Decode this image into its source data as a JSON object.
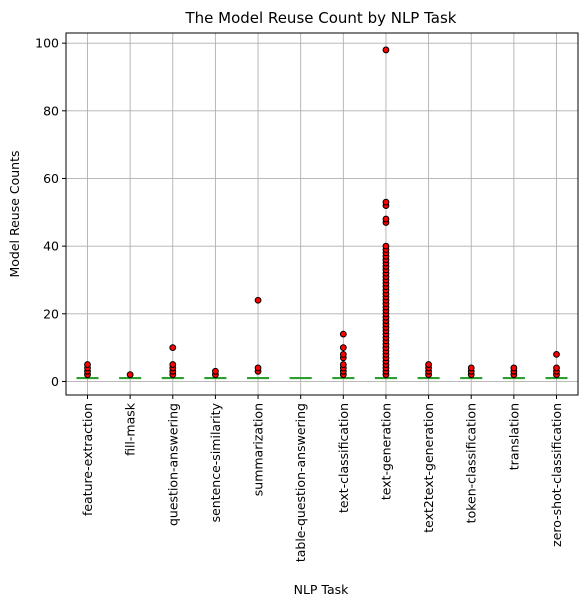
{
  "chart_data": {
    "type": "box",
    "title": "The Model Reuse Count by NLP Task",
    "xlabel": "NLP Task",
    "ylabel": "Model Reuse Counts",
    "ylim": [
      -4,
      103
    ],
    "yticks": [
      0,
      20,
      40,
      60,
      80,
      100
    ],
    "grid": true,
    "colors": {
      "median": "#2ca02c",
      "box": "#1f77b4",
      "outlier_fill": "#ff0000",
      "outlier_edge": "#000000"
    },
    "categories": [
      "feature-extraction",
      "fill-mask",
      "question-answering",
      "sentence-similarity",
      "summarization",
      "table-question-answering",
      "text-classification",
      "text-generation",
      "text2text-generation",
      "token-classification",
      "translation",
      "zero-shot-classification"
    ],
    "medians": [
      1,
      1,
      1,
      1,
      1,
      1,
      1,
      1,
      1,
      1,
      1,
      1
    ],
    "outliers": [
      [
        2,
        3,
        4,
        5
      ],
      [
        2
      ],
      [
        2,
        3,
        4,
        5,
        10
      ],
      [
        2,
        3
      ],
      [
        3,
        4,
        24
      ],
      [],
      [
        2,
        3,
        4,
        5,
        7,
        8,
        10,
        14
      ],
      [
        2,
        3,
        4,
        5,
        6,
        7,
        8,
        9,
        10,
        11,
        12,
        13,
        14,
        15,
        16,
        17,
        18,
        19,
        20,
        21,
        22,
        23,
        24,
        25,
        26,
        27,
        28,
        29,
        30,
        31,
        32,
        33,
        34,
        35,
        36,
        37,
        38,
        39,
        40,
        47,
        48,
        52,
        53,
        98
      ],
      [
        2,
        3,
        4,
        5
      ],
      [
        2,
        3,
        4
      ],
      [
        2,
        3,
        4
      ],
      [
        2,
        3,
        4,
        8
      ]
    ]
  }
}
